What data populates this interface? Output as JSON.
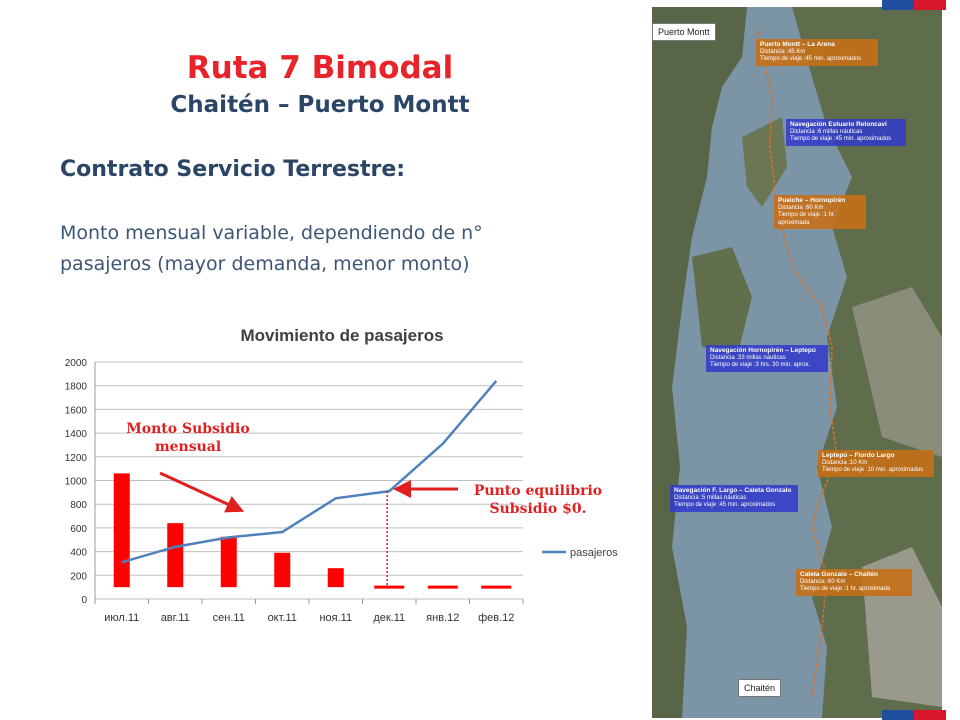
{
  "slide": {
    "title": "Ruta 7 Bimodal",
    "subtitle": "Chaitén – Puerto Montt",
    "heading": "Contrato  Servicio Terrestre:",
    "body_line1": "Monto mensual variable, dependiendo de n°",
    "body_line2": "pasajeros (mayor demanda, menor monto)"
  },
  "chart_data": {
    "type": "line",
    "title": "Movimiento de pasajeros",
    "categories": [
      "июл.11",
      "авг.11",
      "сен.11",
      "окт.11",
      "ноя.11",
      "дек.11",
      "янв.12",
      "фев.12"
    ],
    "series": [
      {
        "name": "pasajeros",
        "values": [
          310,
          440,
          520,
          565,
          850,
          910,
          1310,
          1840
        ]
      }
    ],
    "subsidy_bars": [
      1060,
      640,
      525,
      390,
      260,
      0,
      0,
      0
    ],
    "yticks": [
      0,
      200,
      400,
      600,
      800,
      1000,
      1200,
      1400,
      1600,
      1800,
      2000
    ],
    "ylim": [
      0,
      2000
    ],
    "grid": true,
    "legend": "right",
    "annotations": {
      "subsidy_line1": "Monto Subsidio",
      "subsidy_line2": "mensual",
      "equilibrium_line1": "Punto equilibrio",
      "equilibrium_line2": "Subsidio $0."
    },
    "colors": {
      "line": "#4f81bd",
      "bars": "#ff0000",
      "annotation": "#e02020"
    }
  },
  "map": {
    "origin_label": "Puerto Montt",
    "destination_label": "Chaitén",
    "stages": [
      {
        "title": "Puerto Montt – La Arena",
        "l1": "Distancia :45 Km",
        "l2": "Tiempo de viaje :45 min. aproximados",
        "color": "orange"
      },
      {
        "title": "Navegación Estuario Reloncaví",
        "l1": "Distancia :6 millas náuticas",
        "l2": "Tiempo de viaje :45 min. aproximados",
        "color": "blue"
      },
      {
        "title": "Pueiche – Hornopirén",
        "l1": "Distancia :60 Km",
        "l2": "Tiempo de viaje :1 hr. aproximada",
        "color": "orange"
      },
      {
        "title": "Navegación Hornopirén – Leptepú",
        "l1": "Distancia :33 millas náuticas",
        "l2": "Tiempo de viaje :3 hrs. 30 min. aprox.",
        "color": "blue"
      },
      {
        "title": "Leptepú – Fiordo Largo",
        "l1": "Distancia :10 Km",
        "l2": "Tiempo de viaje :10 min. aproximados",
        "color": "orange"
      },
      {
        "title": "Navegación F. Largo – Caleta Gonzalo",
        "l1": "Distancia :5 millas náuticas",
        "l2": "Tiempo de viaje :45 min. aproximados",
        "color": "blue"
      },
      {
        "title": "Caleta Gonzalo – Chaitén",
        "l1": "Distancia :60 Km",
        "l2": "Tiempo de viaje :1 hr. aproximada",
        "color": "orange"
      }
    ]
  }
}
